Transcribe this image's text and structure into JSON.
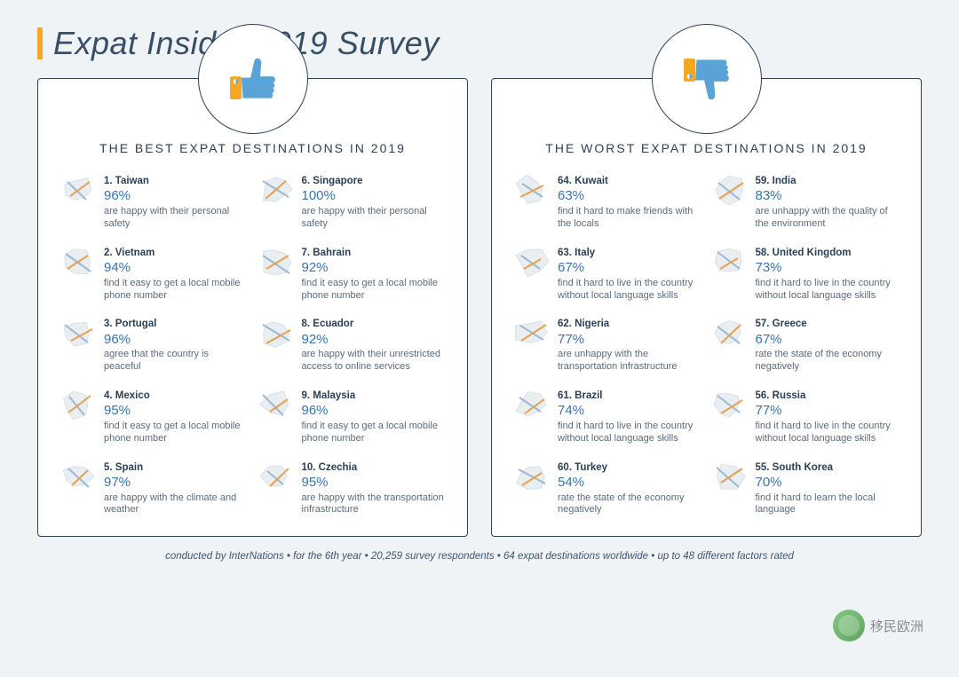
{
  "title": "Expat Insider 2019 Survey",
  "colors": {
    "accent_bar": "#f5a623",
    "panel_border": "#2b4057",
    "percent": "#3574b3",
    "thumb_fill": "#5aa3d6",
    "thumb_cuff": "#f5a623",
    "map_stroke_cool": "#9db8d0",
    "map_stroke_warm": "#e8a14a",
    "background": "#f0f3f6"
  },
  "panels": [
    {
      "icon": "thumbs-up",
      "heading": "THE BEST EXPAT DESTINATIONS IN 2019",
      "columns": [
        [
          {
            "rank": "1.",
            "name": "Taiwan",
            "pct": "96%",
            "desc": "are happy with their personal safety"
          },
          {
            "rank": "2.",
            "name": "Vietnam",
            "pct": "94%",
            "desc": "find it easy to get a local mobile phone number"
          },
          {
            "rank": "3.",
            "name": "Portugal",
            "pct": "96%",
            "desc": "agree that the country is peaceful"
          },
          {
            "rank": "4.",
            "name": "Mexico",
            "pct": "95%",
            "desc": "find it easy to get a local mobile phone number"
          },
          {
            "rank": "5.",
            "name": "Spain",
            "pct": "97%",
            "desc": "are happy with the climate and weather"
          }
        ],
        [
          {
            "rank": "6.",
            "name": "Singapore",
            "pct": "100%",
            "desc": "are happy with their personal safety"
          },
          {
            "rank": "7.",
            "name": "Bahrain",
            "pct": "92%",
            "desc": "find it easy to get a local mobile phone number"
          },
          {
            "rank": "8.",
            "name": "Ecuador",
            "pct": "92%",
            "desc": "are happy with their unrestricted access to online services"
          },
          {
            "rank": "9.",
            "name": "Malaysia",
            "pct": "96%",
            "desc": "find it easy to get a local mobile phone number"
          },
          {
            "rank": "10.",
            "name": "Czechia",
            "pct": "95%",
            "desc": "are happy with the transportation infrastructure"
          }
        ]
      ]
    },
    {
      "icon": "thumbs-down",
      "heading": "THE WORST EXPAT DESTINATIONS IN 2019",
      "columns": [
        [
          {
            "rank": "64.",
            "name": "Kuwait",
            "pct": "63%",
            "desc": "find it hard to make friends with the locals"
          },
          {
            "rank": "63.",
            "name": "Italy",
            "pct": "67%",
            "desc": "find it hard to live in the country without local language skills"
          },
          {
            "rank": "62.",
            "name": "Nigeria",
            "pct": "77%",
            "desc": "are unhappy with the transportation infrastructure"
          },
          {
            "rank": "61.",
            "name": "Brazil",
            "pct": "74%",
            "desc": "find it hard to live in the country without local language skills"
          },
          {
            "rank": "60.",
            "name": "Turkey",
            "pct": "54%",
            "desc": "rate the state of the economy negatively"
          }
        ],
        [
          {
            "rank": "59.",
            "name": "India",
            "pct": "83%",
            "desc": "are unhappy with the quality of the environment"
          },
          {
            "rank": "58.",
            "name": "United Kingdom",
            "pct": "73%",
            "desc": "find it hard to live in the country without local language skills"
          },
          {
            "rank": "57.",
            "name": "Greece",
            "pct": "67%",
            "desc": "rate the state of the  economy negatively"
          },
          {
            "rank": "56.",
            "name": "Russia",
            "pct": "77%",
            "desc": "find it hard to live in the country without local language skills"
          },
          {
            "rank": "55.",
            "name": "South Korea",
            "pct": "70%",
            "desc": "find it hard to learn the local language"
          }
        ]
      ]
    }
  ],
  "footer": "conducted by InterNations  •  for the 6th year  •  20,259 survey respondents  •  64 expat destinations worldwide  •  up to 48 different factors rated",
  "watermark": "移民欧洲"
}
